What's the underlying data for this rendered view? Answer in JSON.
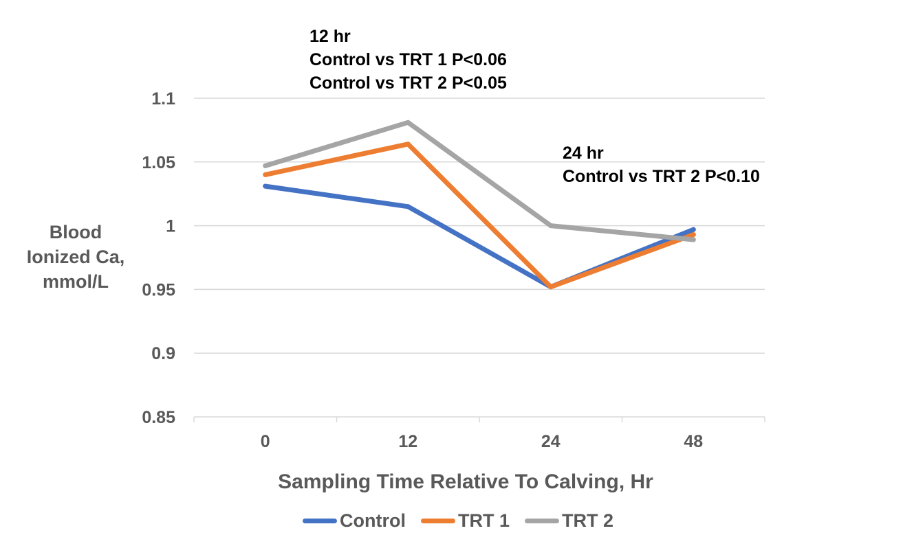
{
  "chart_data": {
    "type": "line",
    "categories": [
      "0",
      "12",
      "24",
      "48"
    ],
    "series": [
      {
        "name": "Control",
        "values": [
          1.031,
          1.015,
          0.952,
          0.997
        ],
        "color": "#4472C4"
      },
      {
        "name": "TRT 1",
        "values": [
          1.04,
          1.064,
          0.952,
          0.993
        ],
        "color": "#ED7D31"
      },
      {
        "name": "TRT 2",
        "values": [
          1.047,
          1.081,
          1.0,
          0.989
        ],
        "color": "#A5A5A5"
      }
    ],
    "ylim": [
      0.85,
      1.1
    ],
    "yticks": [
      "0.85",
      "0.9",
      "0.95",
      "1",
      "1.05",
      "1.1"
    ],
    "ylabel_lines": [
      "Blood",
      "Ionized Ca,",
      "mmol/L"
    ],
    "xlabel": "Sampling Time Relative To Calving, Hr",
    "grid": true,
    "legend": "bottom",
    "annotations": {
      "a12": [
        "12 hr",
        "Control vs TRT 1 P<0.06",
        "Control vs TRT 2 P<0.05"
      ],
      "a24": [
        "24 hr",
        "Control vs TRT 2 P<0.10"
      ]
    }
  }
}
